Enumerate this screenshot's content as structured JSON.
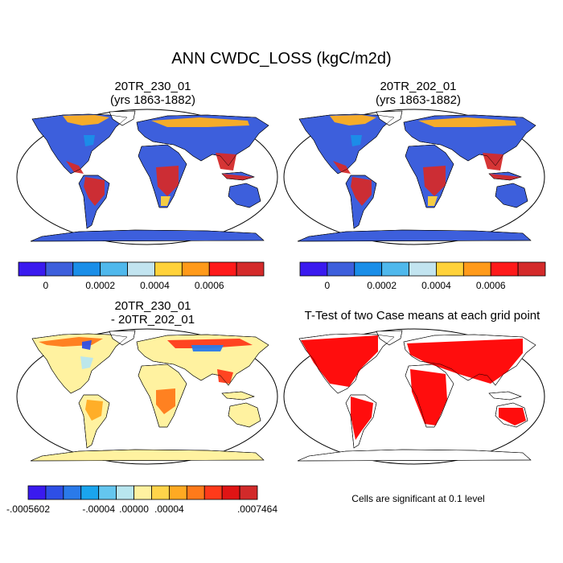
{
  "title": "ANN CWDC_LOSS (kgC/m2d)",
  "panels": [
    {
      "title_line1": "20TR_230_01",
      "title_line2": "(yrs 1863-1882)"
    },
    {
      "title_line1": "20TR_202_01",
      "title_line2": "(yrs 1863-1882)"
    },
    {
      "title_line1": "20TR_230_01",
      "title_line2": "- 20TR_202_01"
    },
    {
      "title_line1": "T-Test of two Case means at each grid point",
      "title_line2": ""
    }
  ],
  "colorbar_top": {
    "colors": [
      "#3a1aef",
      "#3d5fdc",
      "#1a8ee8",
      "#4fb8ec",
      "#c2e4f0",
      "#ffd23a",
      "#ff9a1a",
      "#fe1a1a",
      "#d42a2a"
    ],
    "labels": [
      "0",
      "0.0002",
      "0.0004",
      "0.0006"
    ]
  },
  "colorbar_diff": {
    "colors": [
      "#3a1aef",
      "#2e4fe6",
      "#2a7aea",
      "#1aa5ee",
      "#64c6ef",
      "#b8e6ef",
      "#fff2a0",
      "#ffd44a",
      "#ffaa22",
      "#ff7a1a",
      "#ff3a1a",
      "#e01414",
      "#d22a2a"
    ],
    "labels": [
      "-.0005602",
      "-.00004",
      ".00000",
      ".00004",
      ".0007464"
    ]
  },
  "significance_note": "Cells are significant at 0.1 level",
  "colors": {
    "ocean": "#ffffff",
    "land_base": "#3d5fdc",
    "tropics": "#d42a2a",
    "diff_base": "#fff2a0",
    "sig": "#ff0000"
  }
}
